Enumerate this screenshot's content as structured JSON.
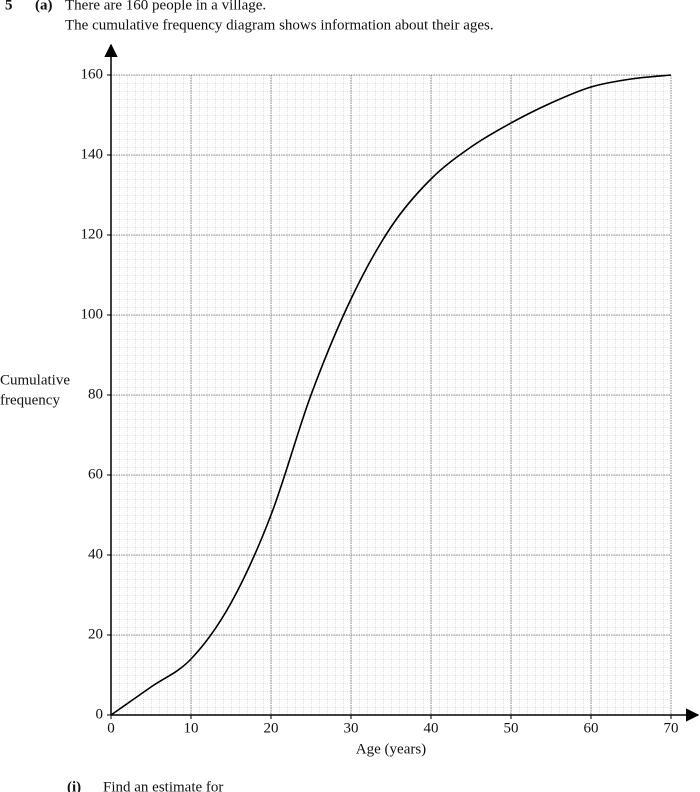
{
  "question": {
    "number": "5",
    "part": "(a)",
    "lines": [
      "There are 160 people in a village.",
      "The cumulative frequency diagram shows information about their ages."
    ],
    "subpart": "(i)",
    "subpart_text": "Find an estimate for"
  },
  "chart_data": {
    "type": "line",
    "x": [
      0,
      5,
      10,
      15,
      20,
      25,
      30,
      35,
      40,
      45,
      50,
      55,
      60,
      65,
      70
    ],
    "series": [
      {
        "color": "#000000",
        "values": [
          0,
          7,
          14,
          28,
          50,
          80,
          104,
          122,
          134,
          142,
          148,
          153,
          157,
          159,
          160
        ]
      }
    ],
    "xlabel": "Age (years)",
    "ylabel": [
      "Cumulative",
      "frequency"
    ],
    "xlim": [
      0,
      70
    ],
    "ylim": [
      0,
      160
    ],
    "xticks": [
      0,
      10,
      20,
      30,
      40,
      50,
      60,
      70
    ],
    "yticks": [
      0,
      20,
      40,
      60,
      80,
      100,
      120,
      140,
      160
    ],
    "grid": true
  }
}
